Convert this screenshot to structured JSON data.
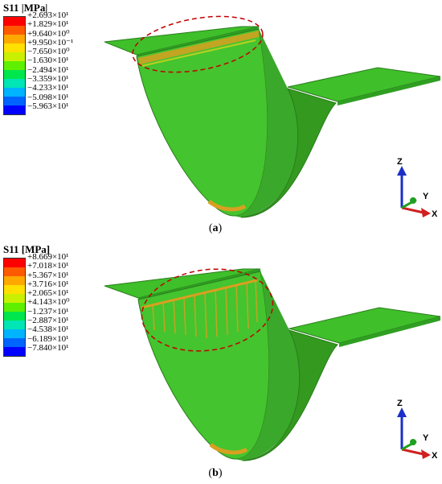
{
  "panels": [
    {
      "id": "a",
      "legend": {
        "title": "S11 |MPa|",
        "colors": [
          "#ff0000",
          "#ff5a00",
          "#ffa800",
          "#ffe000",
          "#c8f000",
          "#5ff000",
          "#00e64d",
          "#00e6b4",
          "#00b4ff",
          "#0064ff",
          "#0000ff"
        ],
        "labels": [
          "+2.693×10¹",
          "+1.829×10¹",
          "+9.640×10⁰",
          "+9.950×10⁻¹",
          "−7.650×10⁰",
          "−1.630×10¹",
          "−2.494×10¹",
          "−3.359×10¹",
          "−4.233×10¹",
          "−5.098×10¹",
          "−5.963×10¹"
        ]
      },
      "caption_letter": "a"
    },
    {
      "id": "b",
      "legend": {
        "title": "S11 [MPa]",
        "colors": [
          "#ff0000",
          "#ff5a00",
          "#ffa800",
          "#ffe000",
          "#c8f000",
          "#5ff000",
          "#00e64d",
          "#00e6b4",
          "#00b4ff",
          "#0064ff",
          "#0000ff"
        ],
        "labels": [
          "+8.669×10¹",
          "+7.018×10¹",
          "+5.367×10¹",
          "+3.716×10¹",
          "+2.065×10¹",
          "+4.143×10⁰",
          "−1.237×10¹",
          "−2.887×10¹",
          "−4.538×10¹",
          "−6.189×10¹",
          "−7.840×10¹"
        ]
      },
      "caption_letter": "b"
    }
  ],
  "triad": {
    "z": "Z",
    "y": "Y",
    "x": "X"
  },
  "colors": {
    "plate_green": "#3fbf2a",
    "plate_dark": "#2f8f20",
    "hotspot_orange": "#d8a020",
    "ellipse_red": "#c00000"
  }
}
